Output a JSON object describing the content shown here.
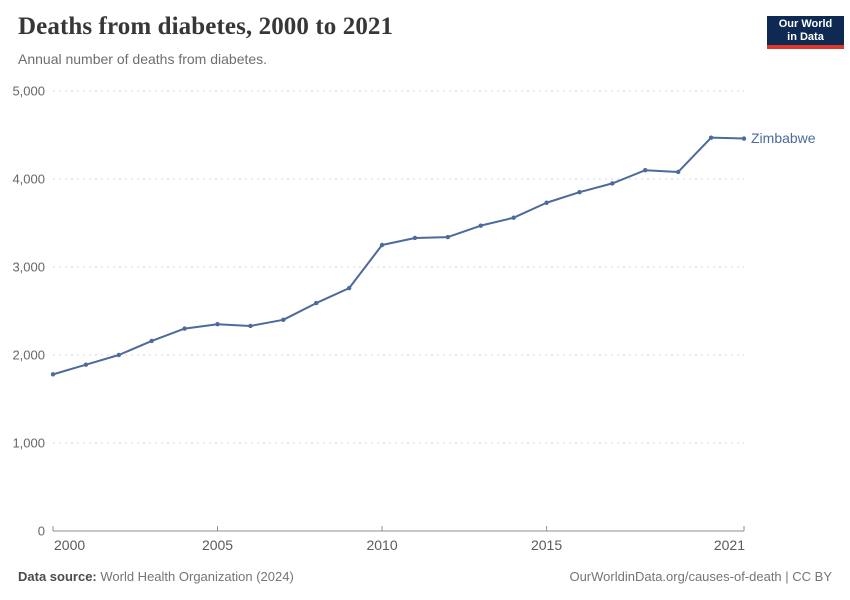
{
  "header": {
    "title": "Deaths from diabetes, 2000 to 2021",
    "subtitle": "Annual number of deaths from diabetes."
  },
  "logo": {
    "line1": "Our World",
    "line2": "in Data",
    "navy": "#0e2a52",
    "red": "#e0352b"
  },
  "chart_data": {
    "type": "line",
    "title": "Deaths from diabetes, 2000 to 2021",
    "subtitle": "Annual number of deaths from diabetes.",
    "x": [
      2000,
      2001,
      2002,
      2003,
      2004,
      2005,
      2006,
      2007,
      2008,
      2009,
      2010,
      2011,
      2012,
      2013,
      2014,
      2015,
      2016,
      2017,
      2018,
      2019,
      2020,
      2021
    ],
    "series": [
      {
        "name": "Zimbabwe",
        "color": "#4c6a9c",
        "values": [
          1780,
          1890,
          2000,
          2160,
          2300,
          2350,
          2330,
          2400,
          2590,
          2760,
          3250,
          3330,
          3340,
          3470,
          3560,
          3730,
          3850,
          3950,
          4100,
          4080,
          4470,
          4460
        ]
      }
    ],
    "ylim": [
      0,
      5000
    ],
    "yticks": [
      0,
      1000,
      2000,
      3000,
      4000,
      5000
    ],
    "ytick_labels": [
      "0",
      "1,000",
      "2,000",
      "3,000",
      "4,000",
      "5,000"
    ],
    "xticks": [
      2000,
      2005,
      2010,
      2015,
      2021
    ],
    "grid": "horizontal dashed",
    "legend": "end-of-line label"
  },
  "footer": {
    "datasource_label": "Data source:",
    "datasource_value": " World Health Organization (2024)",
    "link": "OurWorldinData.org/causes-of-death | CC BY"
  }
}
